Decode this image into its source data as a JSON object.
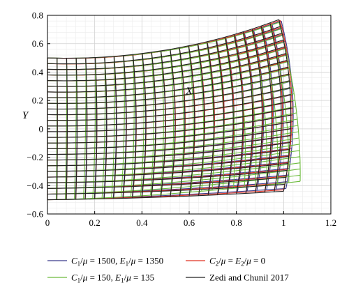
{
  "chart_data": {
    "type": "line",
    "title": "",
    "xlabel": "X",
    "ylabel": "Y",
    "xlim": [
      0,
      1.2
    ],
    "ylim": [
      -0.6,
      0.8
    ],
    "x_ticks": [
      "0",
      "0.2",
      "0.4",
      "0.6",
      "0.8",
      "1",
      "1.2"
    ],
    "y_ticks": [
      "−0.6",
      "−0.4",
      "−0.2",
      "0",
      "0.2",
      "0.4",
      "0.6",
      "0.8"
    ],
    "grid": true,
    "legend_position": "bottom",
    "plot_description": "Deformed mesh of an initially unit-square domain (0≤X≤1, −0.5≤Y≤0.5); each series traces the deformed grid lines",
    "series": [
      {
        "name": "C1/μ = 1500, E1/μ = 1350",
        "color": "#3a3a8c",
        "corners": {
          "top_left": [
            0.0,
            0.5
          ],
          "top_right": [
            0.99,
            0.76
          ],
          "bottom_right": [
            1.01,
            -0.42
          ],
          "bottom_left": [
            0.0,
            -0.5
          ]
        },
        "top_mid": [
          0.5,
          0.55
        ],
        "bottom_mid": [
          0.5,
          -0.47
        ],
        "right_mid": [
          1.04,
          0.17
        ]
      },
      {
        "name": "C2/μ = E2/μ = 0",
        "color": "#e03020",
        "corners": {
          "top_left": [
            0.0,
            0.5
          ],
          "top_right": [
            0.985,
            0.765
          ],
          "bottom_right": [
            1.0,
            -0.43
          ],
          "bottom_left": [
            0.0,
            -0.5
          ]
        },
        "top_mid": [
          0.5,
          0.55
        ],
        "bottom_mid": [
          0.5,
          -0.475
        ],
        "right_mid": [
          1.035,
          0.17
        ]
      },
      {
        "name": "C1/μ = 150, E1/μ = 135",
        "color": "#6cbb3c",
        "corners": {
          "top_left": [
            0.0,
            0.5
          ],
          "top_right": [
            0.98,
            0.75
          ],
          "bottom_right": [
            1.07,
            -0.37
          ],
          "bottom_left": [
            0.0,
            -0.5
          ]
        },
        "top_mid": [
          0.5,
          0.55
        ],
        "bottom_mid": [
          0.5,
          -0.46
        ],
        "right_mid": [
          1.05,
          0.18
        ]
      },
      {
        "name": "Zedi and Chunil 2017",
        "color": "#222222",
        "corners": {
          "top_left": [
            0.0,
            0.5
          ],
          "top_right": [
            0.98,
            0.77
          ],
          "bottom_right": [
            1.0,
            -0.44
          ],
          "bottom_left": [
            0.0,
            -0.5
          ]
        },
        "top_mid": [
          0.5,
          0.555
        ],
        "bottom_mid": [
          0.5,
          -0.48
        ],
        "right_mid": [
          1.03,
          0.17
        ]
      }
    ],
    "legend": [
      {
        "label_html": "C<sub>1</sub>/μ = 1500, E<sub>1</sub>/μ = 1350",
        "color": "#3a3a8c"
      },
      {
        "label_html": "C<sub>2</sub>/μ = E<sub>2</sub>/μ = 0",
        "color": "#e03020"
      },
      {
        "label_html": "C<sub>1</sub>/μ = 150, E<sub>1</sub>/μ = 135",
        "color": "#6cbb3c"
      },
      {
        "label_html": "Zedi and Chunil 2017",
        "color": "#222222"
      }
    ],
    "legend_text": [
      [
        "C",
        "1",
        "/",
        "μ",
        " = 1500, ",
        "E",
        "1",
        "/",
        "μ",
        " = 1350"
      ],
      [
        "C",
        "2",
        "/",
        "μ",
        " = ",
        "E",
        "2",
        "/",
        "μ",
        " = 0"
      ],
      [
        "C",
        "1",
        "/",
        "μ",
        " = 150, ",
        "E",
        "1",
        "/",
        "μ",
        " = 135"
      ],
      [
        "Zedi and Chunil 2017"
      ]
    ]
  }
}
